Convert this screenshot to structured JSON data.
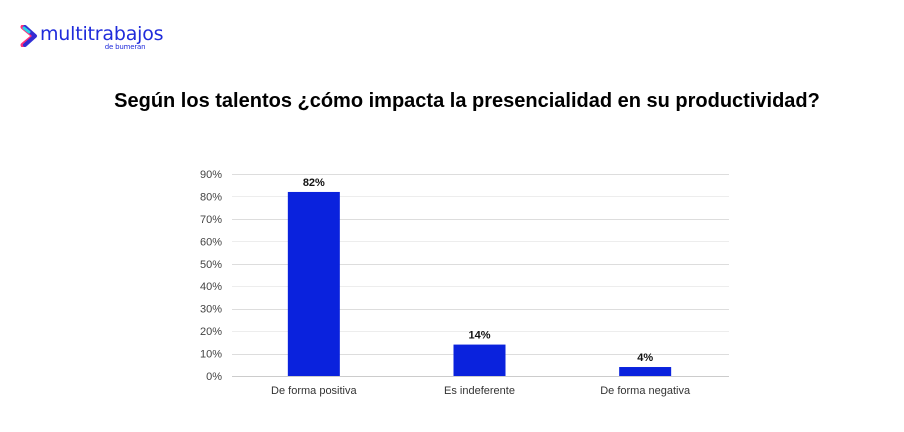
{
  "brand": {
    "name": "multitrabajos",
    "sub": "de bumeran",
    "icon": "chevron-right-icon",
    "color": "#1f2bdb"
  },
  "chart_data": {
    "type": "bar",
    "title": "Según los talentos ¿cómo impacta la presencialidad en su productividad?",
    "categories": [
      "De forma positiva",
      "Es indeferente",
      "De forma negativa"
    ],
    "values": [
      82,
      14,
      4
    ],
    "data_labels": [
      "82%",
      "14%",
      "4%"
    ],
    "xlabel": "",
    "ylabel": "",
    "ylim": [
      0,
      90
    ],
    "yticks": [
      0,
      10,
      20,
      30,
      40,
      50,
      60,
      70,
      80,
      90
    ],
    "ytick_labels": [
      "0%",
      "10%",
      "20%",
      "30%",
      "40%",
      "50%",
      "60%",
      "70%",
      "80%",
      "90%"
    ],
    "grid": true,
    "legend": "none",
    "bar_color": "#0a22dd"
  }
}
